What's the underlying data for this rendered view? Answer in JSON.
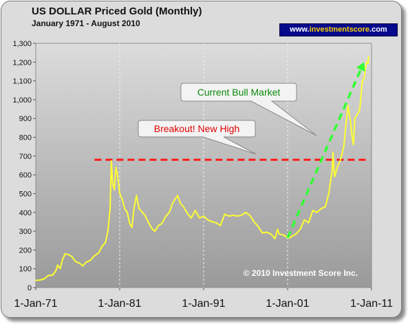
{
  "chart_data": {
    "type": "line",
    "title": "US DOLLAR Priced Gold (Monthly)",
    "subtitle": "January 1971 - August 2010",
    "website": {
      "prefix": "www.",
      "highlight": "investmentscore",
      "suffix": ".com"
    },
    "copyright": "© 2010 Investment Score Inc.",
    "ylabel": "",
    "xlabel": "",
    "ylim": [
      0,
      1300
    ],
    "xlim": [
      1971.0,
      2011.0
    ],
    "y_ticks": [
      "0",
      "100",
      "200",
      "300",
      "400",
      "500",
      "600",
      "700",
      "800",
      "900",
      "1,000",
      "1,100",
      "1,200",
      "1,300"
    ],
    "x_ticks": [
      {
        "label": "1-Jan-71",
        "x": 1971.0
      },
      {
        "label": "1-Jan-81",
        "x": 1981.0
      },
      {
        "label": "1-Jan-91",
        "x": 1991.0
      },
      {
        "label": "1-Jan-01",
        "x": 2001.0
      },
      {
        "label": "1-Jan-11",
        "x": 2011.0
      }
    ],
    "grid": "vertical dashed lines at each x tick",
    "series": [
      {
        "color": "#ffff33",
        "points": [
          [
            1971.0,
            38
          ],
          [
            1971.5,
            40
          ],
          [
            1972.0,
            46
          ],
          [
            1972.5,
            64
          ],
          [
            1973.0,
            66
          ],
          [
            1973.4,
            90
          ],
          [
            1973.6,
            120
          ],
          [
            1973.9,
            100
          ],
          [
            1974.2,
            150
          ],
          [
            1974.5,
            180
          ],
          [
            1974.9,
            175
          ],
          [
            1975.3,
            165
          ],
          [
            1975.7,
            140
          ],
          [
            1976.2,
            130
          ],
          [
            1976.6,
            115
          ],
          [
            1977.0,
            135
          ],
          [
            1977.5,
            145
          ],
          [
            1978.0,
            170
          ],
          [
            1978.5,
            185
          ],
          [
            1978.9,
            220
          ],
          [
            1979.3,
            240
          ],
          [
            1979.6,
            300
          ],
          [
            1979.85,
            420
          ],
          [
            1980.0,
            675
          ],
          [
            1980.15,
            560
          ],
          [
            1980.35,
            520
          ],
          [
            1980.55,
            640
          ],
          [
            1980.75,
            600
          ],
          [
            1981.0,
            500
          ],
          [
            1981.3,
            470
          ],
          [
            1981.6,
            420
          ],
          [
            1981.9,
            400
          ],
          [
            1982.2,
            340
          ],
          [
            1982.45,
            320
          ],
          [
            1982.7,
            420
          ],
          [
            1983.0,
            490
          ],
          [
            1983.3,
            420
          ],
          [
            1983.7,
            400
          ],
          [
            1984.0,
            385
          ],
          [
            1984.5,
            340
          ],
          [
            1984.9,
            310
          ],
          [
            1985.2,
            300
          ],
          [
            1985.6,
            330
          ],
          [
            1986.0,
            340
          ],
          [
            1986.5,
            380
          ],
          [
            1986.9,
            400
          ],
          [
            1987.3,
            450
          ],
          [
            1987.6,
            470
          ],
          [
            1987.9,
            490
          ],
          [
            1988.2,
            450
          ],
          [
            1988.6,
            430
          ],
          [
            1989.0,
            400
          ],
          [
            1989.5,
            370
          ],
          [
            1990.0,
            410
          ],
          [
            1990.5,
            370
          ],
          [
            1991.0,
            380
          ],
          [
            1991.5,
            360
          ],
          [
            1992.0,
            350
          ],
          [
            1992.5,
            345
          ],
          [
            1993.0,
            330
          ],
          [
            1993.5,
            390
          ],
          [
            1994.0,
            380
          ],
          [
            1994.5,
            385
          ],
          [
            1995.0,
            380
          ],
          [
            1995.5,
            385
          ],
          [
            1996.0,
            400
          ],
          [
            1996.5,
            385
          ],
          [
            1997.0,
            350
          ],
          [
            1997.5,
            325
          ],
          [
            1998.0,
            290
          ],
          [
            1998.5,
            295
          ],
          [
            1999.0,
            285
          ],
          [
            1999.5,
            260
          ],
          [
            1999.8,
            310
          ],
          [
            2000.0,
            285
          ],
          [
            2000.5,
            280
          ],
          [
            2001.0,
            265
          ],
          [
            2001.3,
            265
          ],
          [
            2001.6,
            275
          ],
          [
            2002.0,
            285
          ],
          [
            2002.5,
            310
          ],
          [
            2003.0,
            360
          ],
          [
            2003.5,
            345
          ],
          [
            2004.0,
            410
          ],
          [
            2004.5,
            400
          ],
          [
            2005.0,
            420
          ],
          [
            2005.5,
            430
          ],
          [
            2005.9,
            500
          ],
          [
            2006.3,
            620
          ],
          [
            2006.4,
            720
          ],
          [
            2006.6,
            590
          ],
          [
            2007.0,
            650
          ],
          [
            2007.3,
            680
          ],
          [
            2007.7,
            750
          ],
          [
            2008.0,
            890
          ],
          [
            2008.2,
            970
          ],
          [
            2008.5,
            880
          ],
          [
            2008.7,
            800
          ],
          [
            2008.85,
            760
          ],
          [
            2009.0,
            900
          ],
          [
            2009.3,
            920
          ],
          [
            2009.6,
            950
          ],
          [
            2009.9,
            1100
          ],
          [
            2010.1,
            1110
          ],
          [
            2010.4,
            1200
          ],
          [
            2010.6,
            1195
          ],
          [
            2010.65,
            1230
          ]
        ]
      }
    ],
    "reference_line": {
      "y": 680,
      "x_range": [
        1978.0,
        2010.5
      ],
      "color": "#ff1a1a",
      "style": "dashed"
    },
    "trend_arrow": {
      "from": [
        2001.0,
        265
      ],
      "to": [
        2010.1,
        1200
      ],
      "color": "#33ff33",
      "style": "dashed"
    },
    "annotations": [
      {
        "text": "Current Bull Market",
        "color": "#0b8a0b"
      },
      {
        "text": "Breakout! New High",
        "color": "#e00000"
      }
    ],
    "colors": {
      "plot_background": "#9a9a9a",
      "plot_background_light": "#dcdcdc",
      "price_line": "#ffff33"
    }
  }
}
